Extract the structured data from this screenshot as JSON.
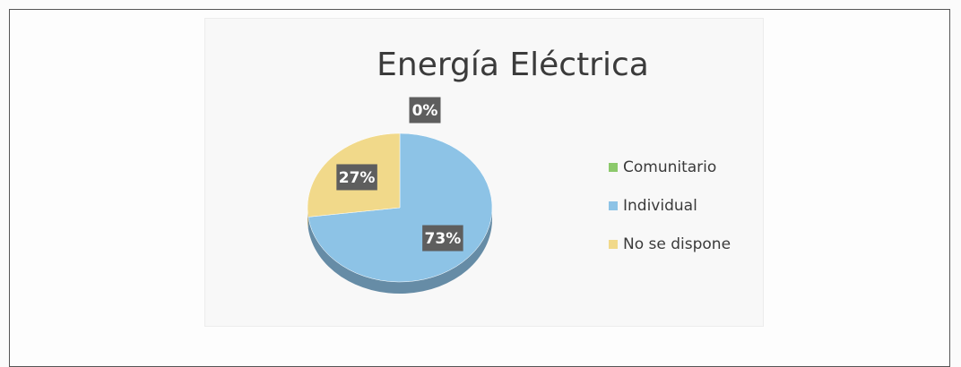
{
  "chart_data": {
    "type": "pie",
    "title": "Energía Eléctrica",
    "categories": [
      "Comunitario",
      "Individual",
      "No se dispone"
    ],
    "values": [
      0,
      73,
      27
    ],
    "labels": [
      "0%",
      "73%",
      "27%"
    ],
    "colors": [
      "#8cc96b",
      "#8dc3e6",
      "#f1d98a"
    ],
    "legend_position": "right",
    "three_d": true
  }
}
